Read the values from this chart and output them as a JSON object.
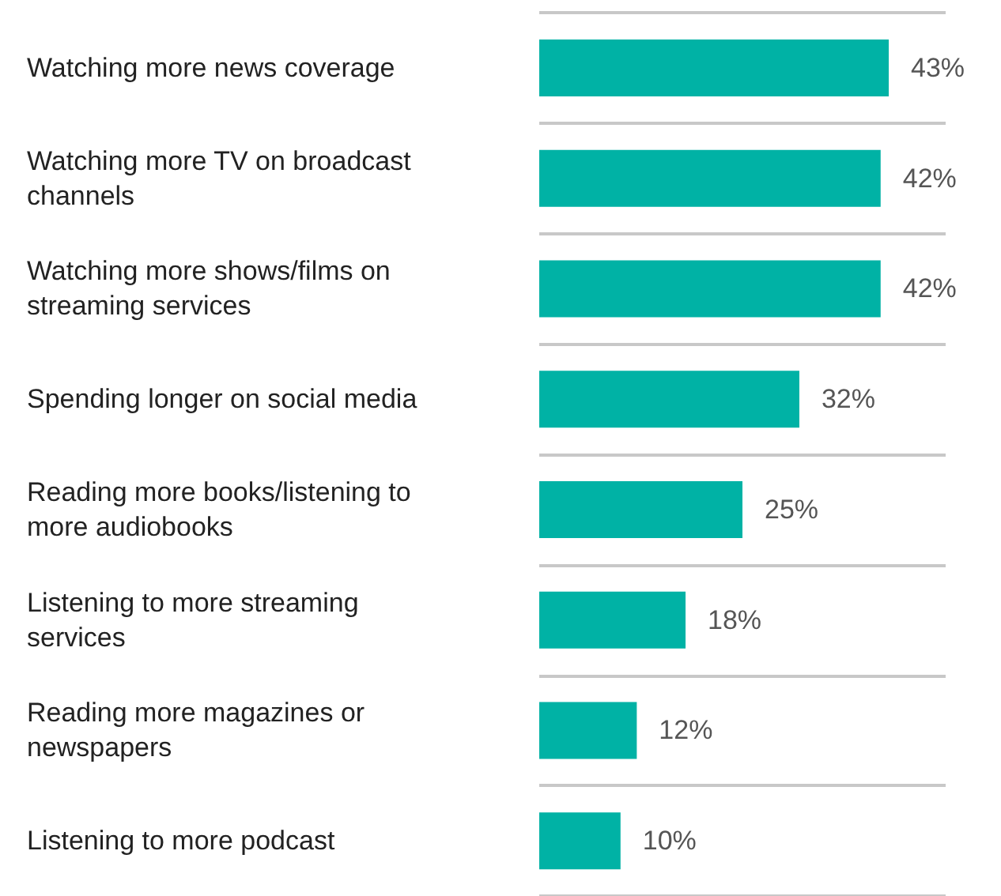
{
  "chart_data": {
    "type": "bar",
    "orientation": "horizontal",
    "categories": [
      "Watching more news coverage",
      "Watching more TV on broadcast channels",
      "Watching more shows/films on streaming services",
      "Spending longer on social media",
      "Reading more books/listening to more audiobooks",
      "Listening to more streaming services",
      "Reading more magazines or newspapers",
      "Listening to more podcast"
    ],
    "values": [
      43,
      42,
      42,
      32,
      25,
      18,
      12,
      10
    ],
    "value_labels": [
      "43%",
      "42%",
      "42%",
      "32%",
      "25%",
      "18%",
      "12%",
      "10%"
    ],
    "color": "#00b2a5",
    "grid": "y"
  }
}
